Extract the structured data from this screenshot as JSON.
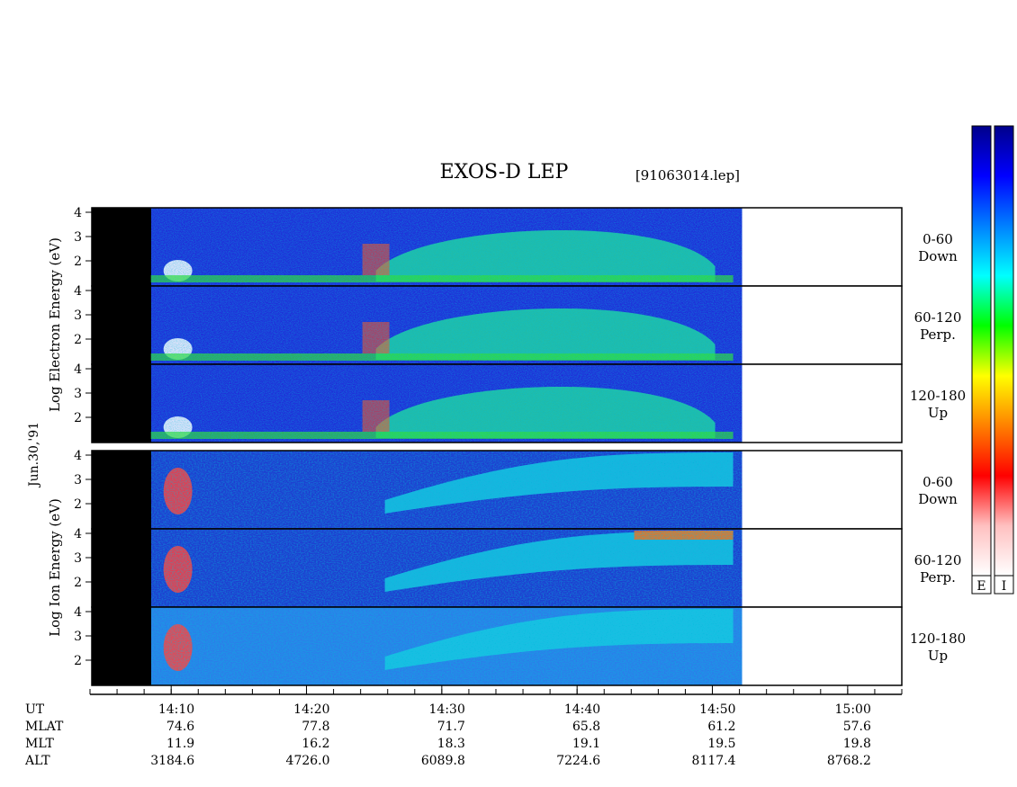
{
  "chart_data": {
    "type": "heatmap",
    "title": "EXOS-D LEP",
    "file_label": "[91063014.lep]",
    "date_label": "Jun.30,'91",
    "colorscale": [
      "#ffffff",
      "#ffc0c0",
      "#ff0000",
      "#ff8000",
      "#ffff00",
      "#00ff00",
      "#00ffff",
      "#0080ff",
      "#0000ff",
      "#00008b"
    ],
    "colorbar_labels": [
      "E",
      "I"
    ],
    "x_axis": {
      "unit": "UT",
      "range": [
        "14:04",
        "15:04"
      ],
      "ticks": [
        "14:10",
        "14:20",
        "14:30",
        "14:40",
        "14:50",
        "15:00"
      ],
      "data_start": "14:08.5",
      "data_end": "14:52.2"
    },
    "groups": [
      {
        "species": "Electron",
        "ylabel": "Log Electron Energy (eV)",
        "y_ticks": [
          "4",
          "3",
          "2"
        ],
        "ylim": [
          1,
          4.2
        ],
        "panels": [
          {
            "angle": "0-60",
            "direction": "Down"
          },
          {
            "angle": "60-120",
            "direction": "Perp."
          },
          {
            "angle": "120-180",
            "direction": "Up"
          }
        ]
      },
      {
        "species": "Ion",
        "ylabel": "Log Ion Energy (eV)",
        "y_ticks": [
          "4",
          "3",
          "2"
        ],
        "ylim": [
          1,
          4.2
        ],
        "panels": [
          {
            "angle": "0-60",
            "direction": "Down"
          },
          {
            "angle": "60-120",
            "direction": "Perp."
          },
          {
            "angle": "120-180",
            "direction": "Up"
          }
        ]
      }
    ],
    "ephemeris": {
      "rows": [
        {
          "label": "UT",
          "values": [
            "14:10",
            "14:20",
            "14:30",
            "14:40",
            "14:50",
            "15:00"
          ]
        },
        {
          "label": "MLAT",
          "values": [
            "74.6",
            "77.8",
            "71.7",
            "65.8",
            "61.2",
            "57.6"
          ]
        },
        {
          "label": "MLT",
          "values": [
            "11.9",
            "16.2",
            "18.3",
            "19.1",
            "19.5",
            "19.8"
          ]
        },
        {
          "label": "ALT",
          "values": [
            "3184.6",
            "4726.0",
            "6089.8",
            "7224.6",
            "8117.4",
            "8768.2"
          ]
        }
      ]
    }
  }
}
